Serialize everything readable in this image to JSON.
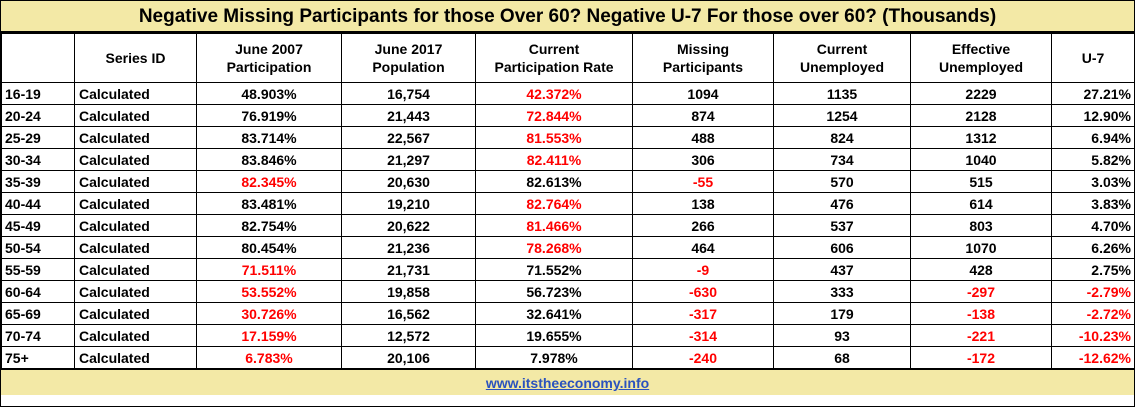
{
  "title": "Negative Missing Participants for those Over 60?  Negative U-7 For those over 60? (Thousands)",
  "columns": [
    {
      "line1": "",
      "line2": ""
    },
    {
      "line1": "Series ID",
      "line2": ""
    },
    {
      "line1": "June 2007",
      "line2": "Participation"
    },
    {
      "line1": "June 2017",
      "line2": "Population"
    },
    {
      "line1": "Current",
      "line2": "Participation Rate"
    },
    {
      "line1": "Missing",
      "line2": "Participants"
    },
    {
      "line1": "Current",
      "line2": "Unemployed"
    },
    {
      "line1": "Effective",
      "line2": "Unemployed"
    },
    {
      "line1": "U-7",
      "line2": ""
    }
  ],
  "rows": [
    {
      "age": "16-19",
      "series": "Calculated",
      "p2007": "48.903%",
      "pop2017": "16,754",
      "current_rate": "42.372%",
      "missing": "1094",
      "unemployed": "1135",
      "effective": "2229",
      "u7": "27.21%",
      "red": [
        "current_rate"
      ]
    },
    {
      "age": "20-24",
      "series": "Calculated",
      "p2007": "76.919%",
      "pop2017": "21,443",
      "current_rate": "72.844%",
      "missing": "874",
      "unemployed": "1254",
      "effective": "2128",
      "u7": "12.90%",
      "red": [
        "current_rate"
      ]
    },
    {
      "age": "25-29",
      "series": "Calculated",
      "p2007": "83.714%",
      "pop2017": "22,567",
      "current_rate": "81.553%",
      "missing": "488",
      "unemployed": "824",
      "effective": "1312",
      "u7": "6.94%",
      "red": [
        "current_rate"
      ]
    },
    {
      "age": "30-34",
      "series": "Calculated",
      "p2007": "83.846%",
      "pop2017": "21,297",
      "current_rate": "82.411%",
      "missing": "306",
      "unemployed": "734",
      "effective": "1040",
      "u7": "5.82%",
      "red": [
        "current_rate"
      ]
    },
    {
      "age": "35-39",
      "series": "Calculated",
      "p2007": "82.345%",
      "pop2017": "20,630",
      "current_rate": "82.613%",
      "missing": "-55",
      "unemployed": "570",
      "effective": "515",
      "u7": "3.03%",
      "red": [
        "p2007",
        "missing"
      ]
    },
    {
      "age": "40-44",
      "series": "Calculated",
      "p2007": "83.481%",
      "pop2017": "19,210",
      "current_rate": "82.764%",
      "missing": "138",
      "unemployed": "476",
      "effective": "614",
      "u7": "3.83%",
      "red": [
        "current_rate"
      ]
    },
    {
      "age": "45-49",
      "series": "Calculated",
      "p2007": "82.754%",
      "pop2017": "20,622",
      "current_rate": "81.466%",
      "missing": "266",
      "unemployed": "537",
      "effective": "803",
      "u7": "4.70%",
      "red": [
        "current_rate"
      ]
    },
    {
      "age": "50-54",
      "series": "Calculated",
      "p2007": "80.454%",
      "pop2017": "21,236",
      "current_rate": "78.268%",
      "missing": "464",
      "unemployed": "606",
      "effective": "1070",
      "u7": "6.26%",
      "red": [
        "current_rate"
      ]
    },
    {
      "age": "55-59",
      "series": "Calculated",
      "p2007": "71.511%",
      "pop2017": "21,731",
      "current_rate": "71.552%",
      "missing": "-9",
      "unemployed": "437",
      "effective": "428",
      "u7": "2.75%",
      "red": [
        "p2007",
        "missing"
      ]
    },
    {
      "age": "60-64",
      "series": "Calculated",
      "p2007": "53.552%",
      "pop2017": "19,858",
      "current_rate": "56.723%",
      "missing": "-630",
      "unemployed": "333",
      "effective": "-297",
      "u7": "-2.79%",
      "red": [
        "p2007",
        "missing",
        "effective",
        "u7"
      ]
    },
    {
      "age": "65-69",
      "series": "Calculated",
      "p2007": "30.726%",
      "pop2017": "16,562",
      "current_rate": "32.641%",
      "missing": "-317",
      "unemployed": "179",
      "effective": "-138",
      "u7": "-2.72%",
      "red": [
        "p2007",
        "missing",
        "effective",
        "u7"
      ]
    },
    {
      "age": "70-74",
      "series": "Calculated",
      "p2007": "17.159%",
      "pop2017": "12,572",
      "current_rate": "19.655%",
      "missing": "-314",
      "unemployed": "93",
      "effective": "-221",
      "u7": "-10.23%",
      "red": [
        "p2007",
        "missing",
        "effective",
        "u7"
      ]
    },
    {
      "age": "75+",
      "series": "Calculated",
      "p2007": "6.783%",
      "pop2017": "20,106",
      "current_rate": "7.978%",
      "missing": "-240",
      "unemployed": "68",
      "effective": "-172",
      "u7": "-12.62%",
      "red": [
        "p2007",
        "missing",
        "effective",
        "u7"
      ]
    }
  ],
  "footer": "www.itstheeconomy.info",
  "colors": {
    "banner_bg": "#f3e9a6",
    "negative": "#ff0000",
    "link": "#2a52be"
  }
}
